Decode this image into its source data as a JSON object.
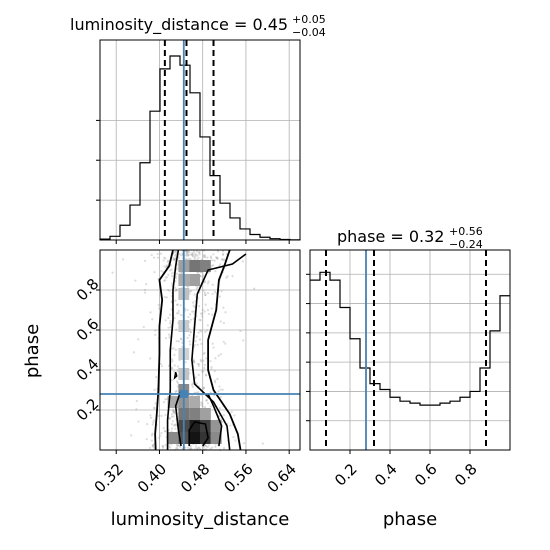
{
  "chart_data": {
    "type": "corner",
    "parameters": [
      {
        "name": "luminosity_distance",
        "title": {
          "prefix": "luminosity_distance = 0.45",
          "plus": "+0.05",
          "minus": "−0.04"
        },
        "median": 0.45,
        "quantiles": [
          0.41,
          0.45,
          0.5
        ],
        "truth": 0.445,
        "range": [
          0.29,
          0.66
        ],
        "ticks": [
          0.32,
          0.4,
          0.48,
          0.56,
          0.64
        ],
        "tick_labels": [
          "0.32",
          "0.40",
          "0.48",
          "0.56",
          "0.64"
        ],
        "label": "luminosity_distance"
      },
      {
        "name": "phase",
        "title": {
          "prefix": "phase = 0.32",
          "plus": "+0.56",
          "minus": "−0.24"
        },
        "median": 0.32,
        "quantiles": [
          0.08,
          0.32,
          0.88
        ],
        "truth": 0.28,
        "range": [
          0.0,
          1.0
        ],
        "ticks": [
          0.2,
          0.4,
          0.6,
          0.8
        ],
        "tick_labels": [
          "0.2",
          "0.4",
          "0.6",
          "0.8"
        ],
        "label": "phase"
      }
    ],
    "hist_luminosity_distance": {
      "bin_edges": [
        0.29,
        0.3085,
        0.327,
        0.3455,
        0.364,
        0.3825,
        0.401,
        0.4195,
        0.438,
        0.4565,
        0.475,
        0.4935,
        0.512,
        0.5305,
        0.549,
        0.5675,
        0.586,
        0.6045,
        0.623,
        0.6415,
        0.66
      ],
      "density": [
        0.005,
        0.02,
        0.08,
        0.19,
        0.42,
        0.7,
        0.93,
        1.0,
        0.95,
        0.8,
        0.56,
        0.35,
        0.2,
        0.12,
        0.06,
        0.03,
        0.015,
        0.007,
        0.003,
        0.001
      ]
    },
    "hist_phase": {
      "bin_edges": [
        0.0,
        0.05,
        0.1,
        0.15,
        0.2,
        0.25,
        0.3,
        0.35,
        0.4,
        0.45,
        0.5,
        0.55,
        0.6,
        0.65,
        0.7,
        0.75,
        0.8,
        0.85,
        0.9,
        0.95,
        1.0
      ],
      "density": [
        0.87,
        0.91,
        0.87,
        0.73,
        0.57,
        0.42,
        0.34,
        0.31,
        0.27,
        0.25,
        0.24,
        0.23,
        0.23,
        0.24,
        0.25,
        0.27,
        0.3,
        0.42,
        0.61,
        0.79
      ]
    },
    "joint_2d": {
      "x": "luminosity_distance",
      "y": "phase",
      "cells": [
        {
          "x": 0.445,
          "y": 0.92,
          "count": 0.35
        },
        {
          "x": 0.465,
          "y": 0.92,
          "count": 0.55
        },
        {
          "x": 0.485,
          "y": 0.92,
          "count": 0.5
        },
        {
          "x": 0.445,
          "y": 0.85,
          "count": 0.3
        },
        {
          "x": 0.465,
          "y": 0.85,
          "count": 0.35
        },
        {
          "x": 0.445,
          "y": 0.78,
          "count": 0.2
        },
        {
          "x": 0.445,
          "y": 0.62,
          "count": 0.15
        },
        {
          "x": 0.445,
          "y": 0.48,
          "count": 0.12
        },
        {
          "x": 0.445,
          "y": 0.38,
          "count": 0.18
        },
        {
          "x": 0.445,
          "y": 0.3,
          "count": 0.45
        },
        {
          "x": 0.425,
          "y": 0.24,
          "count": 0.3
        },
        {
          "x": 0.445,
          "y": 0.24,
          "count": 0.4
        },
        {
          "x": 0.465,
          "y": 0.24,
          "count": 0.3
        },
        {
          "x": 0.445,
          "y": 0.18,
          "count": 0.55
        },
        {
          "x": 0.465,
          "y": 0.18,
          "count": 0.5
        },
        {
          "x": 0.485,
          "y": 0.18,
          "count": 0.35
        },
        {
          "x": 0.445,
          "y": 0.12,
          "count": 0.75
        },
        {
          "x": 0.465,
          "y": 0.12,
          "count": 0.95
        },
        {
          "x": 0.485,
          "y": 0.12,
          "count": 0.8
        },
        {
          "x": 0.505,
          "y": 0.12,
          "count": 0.4
        },
        {
          "x": 0.425,
          "y": 0.06,
          "count": 0.45
        },
        {
          "x": 0.445,
          "y": 0.06,
          "count": 0.7
        },
        {
          "x": 0.465,
          "y": 0.06,
          "count": 1.0
        },
        {
          "x": 0.485,
          "y": 0.06,
          "count": 0.85
        },
        {
          "x": 0.505,
          "y": 0.06,
          "count": 0.45
        }
      ]
    },
    "truth_color": "#4682b4",
    "grid": true
  }
}
